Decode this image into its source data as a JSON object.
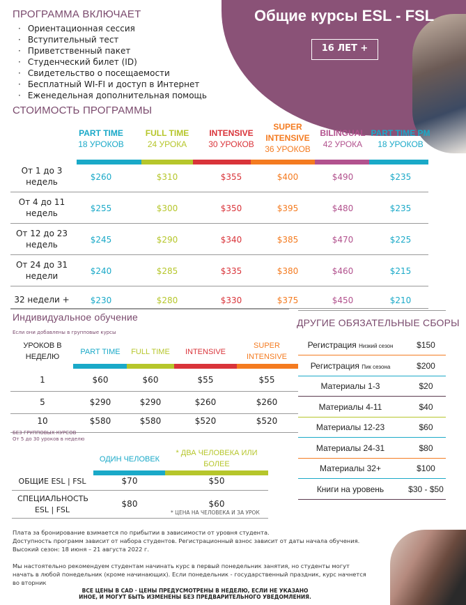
{
  "header": {
    "title": "Общие курсы ESL - FSL",
    "age": "16 ЛЕТ +"
  },
  "includes": {
    "heading": "ПРОГРАММА ВКЛЮЧАЕТ",
    "items": [
      "Ориентационная сессия",
      "Вступительный тест",
      "Приветственный пакет",
      "Студенческий билет (ID)",
      "Свидетельство о посещаемости",
      "Бесплатный WI-FI и доступ в Интернет",
      "Еженедельная дополнительная помощь"
    ]
  },
  "pricing": {
    "heading": "СТОИМОСТЬ ПРОГРАММЫ",
    "columns": [
      {
        "name": "PART TIME",
        "sub": "18 УРОКОВ",
        "color": "#1aa9c8"
      },
      {
        "name": "FULL TIME",
        "sub": "24 УРОКА",
        "color": "#b6c62b"
      },
      {
        "name": "INTENSIVE",
        "sub": "30 УРОКОВ",
        "color": "#d9343a"
      },
      {
        "name": "SUPER INTENSIVE",
        "sub": "36 УРОКОВ",
        "color": "#f47b20"
      },
      {
        "name": "BILINGUAL",
        "sub": "42 УРОКА",
        "color": "#b2528e"
      },
      {
        "name": "PART TIME PM",
        "sub": "18 УРОКОВ",
        "color": "#1aa9c8"
      }
    ],
    "rows": [
      {
        "label": "От 1 до 3 недель",
        "values": [
          "$260",
          "$310",
          "$355",
          "$400",
          "$490",
          "$235"
        ]
      },
      {
        "label": "От 4 до 11 недель",
        "values": [
          "$255",
          "$300",
          "$350",
          "$395",
          "$480",
          "$235"
        ]
      },
      {
        "label": "От 12 до 23 недель",
        "values": [
          "$245",
          "$290",
          "$340",
          "$385",
          "$470",
          "$225"
        ]
      },
      {
        "label": "От 24 до 31 недели",
        "values": [
          "$240",
          "$285",
          "$335",
          "$380",
          "$460",
          "$215"
        ]
      },
      {
        "label": "32 недели +",
        "values": [
          "$230",
          "$280",
          "$330",
          "$375",
          "$450",
          "$210"
        ]
      }
    ]
  },
  "individual": {
    "heading": "Индивидуальное обучение",
    "subheading": "Если они добавлены в групповые курсы",
    "row_header": "УРОКОВ В НЕДЕЛЮ",
    "columns": [
      "PART TIME",
      "FULL TIME",
      "INTENSIVE",
      "SUPER INTENSIVE"
    ],
    "rows": [
      {
        "label": "1",
        "values": [
          "$60",
          "$60",
          "$55",
          "$55"
        ]
      },
      {
        "label": "5",
        "values": [
          "$290",
          "$290",
          "$260",
          "$260"
        ]
      },
      {
        "label": "10",
        "values": [
          "$580",
          "$580",
          "$520",
          "$520"
        ]
      }
    ],
    "note1": "БЕЗ ГРУППОВЫХ КУРСОВ",
    "note2": "От 5 до 30 уроков в неделю"
  },
  "private": {
    "columns": [
      "ОДИН ЧЕЛОВЕК",
      "* ДВА ЧЕЛОВЕКА ИЛИ БОЛЕЕ"
    ],
    "rows": [
      {
        "label": "ОБЩИЕ ESL | FSL",
        "values": [
          "$70",
          "$50"
        ]
      },
      {
        "label": "СПЕЦИАЛЬНОСТЬ ESL | FSL",
        "values": [
          "$80",
          "$60"
        ]
      }
    ],
    "footnote": "* ЦЕНА НА ЧЕЛОВЕКА И ЗА УРОК"
  },
  "fees": {
    "heading": "ДРУГИЕ ОБЯЗАТЕЛЬНЫЕ СБОРЫ",
    "items": [
      {
        "label": "Регистрация",
        "note": "Низкий сезон",
        "value": "$150"
      },
      {
        "label": "Регистрация",
        "note": "Пик сезона",
        "value": "$200"
      },
      {
        "label": "Материалы 1-3",
        "note": "",
        "value": "$20"
      },
      {
        "label": "Материалы 4-11",
        "note": "",
        "value": "$40"
      },
      {
        "label": "Материалы 12-23",
        "note": "",
        "value": "$60"
      },
      {
        "label": "Материалы 24-31",
        "note": "",
        "value": "$80"
      },
      {
        "label": "Материалы 32+",
        "note": "",
        "value": "$100"
      },
      {
        "label": "Книги на уровень",
        "note": "",
        "value": "$30 - $50"
      }
    ]
  },
  "notes": [
    "Плата за бронирование взимается по прибытии в зависимости от уровня студента.",
    "Доступность программ зависит от набора студентов. Регистрационный взнос зависит от даты начала обучения.",
    "Высокий сезон: 18 июня – 21 августа 2022 г.",
    "Мы настоятельно рекомендуем студентам начинать курс в первый понедельник занятия, но студенты могут начать в любой понедельник (кроме начинающих). Если понедельник - государственный праздник, курс начнется во вторник"
  ],
  "footer": "ВСЕ ЦЕНЫ В CAD · ЦЕНЫ ПРЕДУСМОТРЕНЫ В НЕДЕЛЮ, ЕСЛИ НЕ УКАЗАНО ИНОЕ, И МОГУТ БЫТЬ ИЗМЕНЕНЫ БЕЗ ПРЕДВАРИТЕЛЬНОГО УВЕДОМЛЕНИЯ."
}
